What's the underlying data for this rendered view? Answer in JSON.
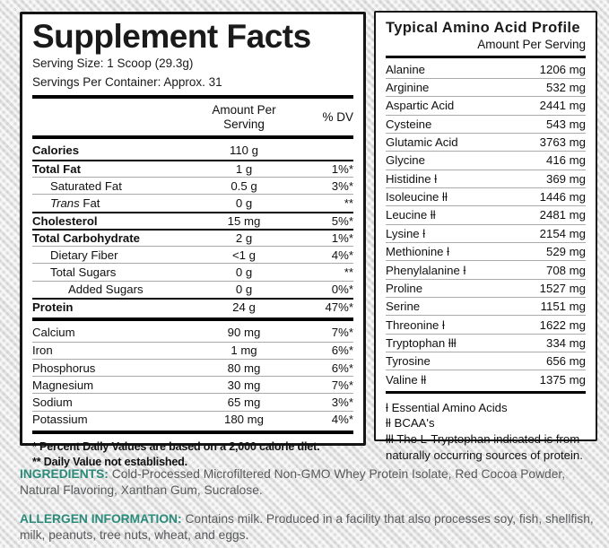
{
  "colors": {
    "accent_teal": "#2b8b7b",
    "panel_border": "#151515",
    "body_gray": "#58595b"
  },
  "supplement": {
    "title": "Supplement Facts",
    "serving_size": "Serving Size: 1 Scoop (29.3g)",
    "servings_per_container": "Servings Per Container: Approx. 31",
    "header": {
      "amount_line1": "Amount Per",
      "amount_line2": "Serving",
      "dv": "% DV"
    },
    "main_rows": [
      {
        "label": "Calories",
        "amount": "110 g",
        "dv": "",
        "bold": true,
        "indent": 0,
        "rule": "none"
      },
      {
        "label": "Total Fat",
        "amount": "1 g",
        "dv": "1%*",
        "bold": true,
        "indent": 0,
        "rule": "dark"
      },
      {
        "label": "Saturated Fat",
        "amount": "0.5 g",
        "dv": "3%*",
        "bold": false,
        "indent": 1,
        "rule": "light"
      },
      {
        "italic": "Trans",
        "label": " Fat",
        "amount": "0 g",
        "dv": "**",
        "bold": false,
        "indent": 1,
        "rule": "light"
      },
      {
        "label": "Cholesterol",
        "amount": "15 mg",
        "dv": "5%*",
        "bold": true,
        "indent": 0,
        "rule": "dark"
      },
      {
        "label": "Total Carbohydrate",
        "amount": "2 g",
        "dv": "1%*",
        "bold": true,
        "indent": 0,
        "rule": "dark"
      },
      {
        "label": "Dietary Fiber",
        "amount": "<1 g",
        "dv": "4%*",
        "bold": false,
        "indent": 1,
        "rule": "light"
      },
      {
        "label": "Total Sugars",
        "amount": "0 g",
        "dv": "**",
        "bold": false,
        "indent": 1,
        "rule": "light"
      },
      {
        "label": "Added Sugars",
        "amount": "0 g",
        "dv": "0%*",
        "bold": false,
        "indent": 2,
        "rule": "light"
      },
      {
        "label": "Protein",
        "amount": "24 g",
        "dv": "47%*",
        "bold": true,
        "indent": 0,
        "rule": "dark"
      }
    ],
    "mineral_rows": [
      {
        "label": "Calcium",
        "amount": "90 mg",
        "dv": "7%*"
      },
      {
        "label": "Iron",
        "amount": "1 mg",
        "dv": "6%*"
      },
      {
        "label": "Phosphorus",
        "amount": "80 mg",
        "dv": "6%*"
      },
      {
        "label": "Magnesium",
        "amount": "30 mg",
        "dv": "7%*"
      },
      {
        "label": "Sodium",
        "amount": "65 mg",
        "dv": "3%*"
      },
      {
        "label": "Potassium",
        "amount": "180 mg",
        "dv": "4%*"
      }
    ],
    "footnotes": [
      "* Percent Daily Values are based on a 2,000 calorie diet.",
      "** Daily Value not established."
    ]
  },
  "amino": {
    "title": "Typical Amino Acid Profile",
    "subtitle": "Amount Per Serving",
    "rows": [
      {
        "label": "Alanine",
        "amount": "1206 mg"
      },
      {
        "label": "Arginine",
        "amount": "532 mg"
      },
      {
        "label": "Aspartic Acid",
        "amount": "2441 mg"
      },
      {
        "label": "Cysteine",
        "amount": "543 mg"
      },
      {
        "label": "Glutamic Acid",
        "amount": "3763 mg"
      },
      {
        "label": "Glycine",
        "amount": "416 mg"
      },
      {
        "label": "Histidine ƚ",
        "amount": "369 mg"
      },
      {
        "label": "Isoleucine ƚƚ",
        "amount": "1446 mg"
      },
      {
        "label": "Leucine ƚƚ",
        "amount": "2481 mg"
      },
      {
        "label": "Lysine ƚ",
        "amount": "2154 mg"
      },
      {
        "label": "Methionine ƚ",
        "amount": "529 mg"
      },
      {
        "label": "Phenylalanine ƚ",
        "amount": "708 mg"
      },
      {
        "label": "Proline",
        "amount": "1527 mg"
      },
      {
        "label": "Serine",
        "amount": "1151 mg"
      },
      {
        "label": "Threonine ƚ",
        "amount": "1622 mg"
      },
      {
        "label": "Tryptophan ƚƚƚ",
        "amount": "334 mg"
      },
      {
        "label": "Tyrosine",
        "amount": "656 mg"
      },
      {
        "label": "Valine ƚƚ",
        "amount": "1375 mg"
      }
    ],
    "footnotes": [
      "ƚ Essential Amino Acids",
      "ƚƚ BCAA's",
      "ƚƚƚ The L-Tryptophan indicated is from naturally occurring sources of protein."
    ]
  },
  "ingredients": {
    "heading": "INGREDIENTS:",
    "text": " Cold-Processed Microfiltered Non-GMO Whey Protein Isolate, Red Cocoa Powder, Natural Flavoring, Xanthan Gum, Sucralose."
  },
  "allergen": {
    "heading": "ALLERGEN INFORMATION:",
    "text": " Contains milk. Produced in a facility that also processes soy, fish, shellfish, milk, peanuts, tree nuts, wheat, and eggs."
  }
}
